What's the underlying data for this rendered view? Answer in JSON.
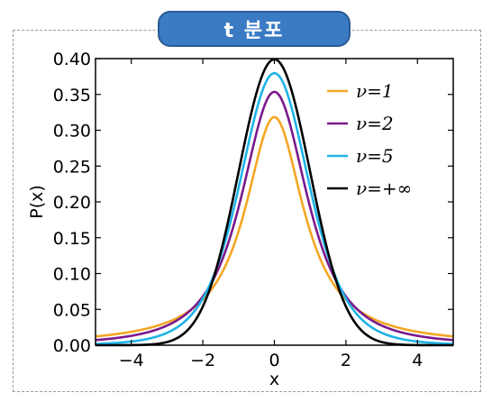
{
  "title": "t 분포",
  "chart_data": {
    "type": "line",
    "xlabel": "x",
    "ylabel": "P(x)",
    "xlim": [
      -5,
      5
    ],
    "ylim": [
      0,
      0.4
    ],
    "xticks": [
      -4,
      -2,
      0,
      2,
      4
    ],
    "xtick_labels": [
      "−4",
      "−2",
      "0",
      "2",
      "4"
    ],
    "yticks": [
      0.0,
      0.05,
      0.1,
      0.15,
      0.2,
      0.25,
      0.3,
      0.35,
      0.4
    ],
    "ytick_labels": [
      "0.00",
      "0.05",
      "0.10",
      "0.15",
      "0.20",
      "0.25",
      "0.30",
      "0.35",
      "0.40"
    ],
    "legend_position": "top-right",
    "series": [
      {
        "name": "ν=1",
        "nu": 1,
        "color": "#f5a623",
        "peak": 0.318
      },
      {
        "name": "ν=2",
        "nu": 2,
        "color": "#7b1a8c",
        "peak": 0.354
      },
      {
        "name": "ν=5",
        "nu": 5,
        "color": "#1fb4e8",
        "peak": 0.38
      },
      {
        "name": "ν=+∞",
        "nu": "inf",
        "color": "#000000",
        "peak": 0.399
      }
    ]
  }
}
